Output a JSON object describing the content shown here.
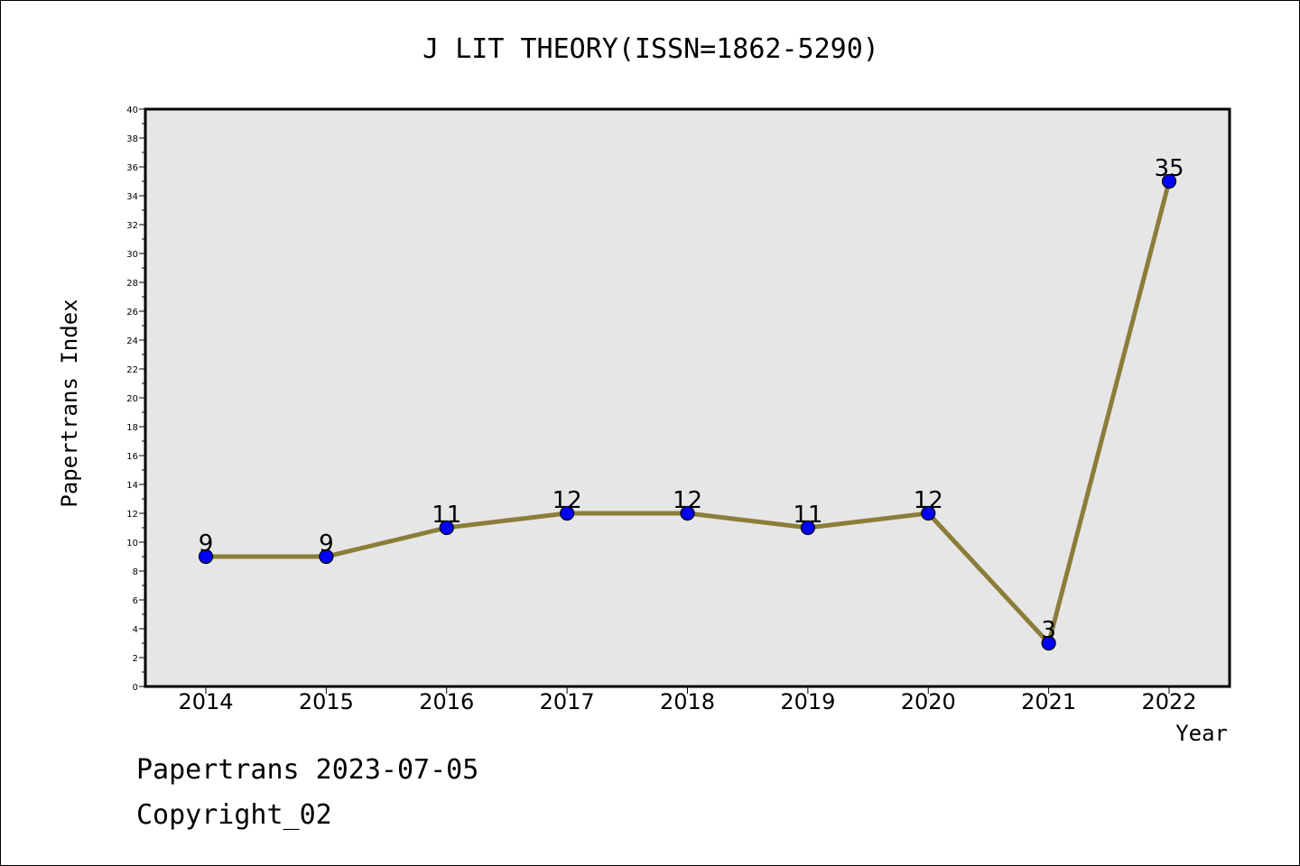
{
  "chart_data": {
    "type": "line",
    "title": "J LIT THEORY(ISSN=1862-5290)",
    "xlabel": "Year",
    "ylabel": "Papertrans Index",
    "categories": [
      "2014",
      "2015",
      "2016",
      "2017",
      "2018",
      "2019",
      "2020",
      "2021",
      "2022"
    ],
    "series": [
      {
        "values": [
          9,
          9,
          11,
          12,
          12,
          11,
          12,
          3,
          35
        ]
      }
    ],
    "ylim": [
      0,
      40
    ],
    "y_tick_step": 2,
    "grid": false,
    "line_color": "#8b7d3a",
    "marker_color": "#0000ff",
    "plot_background": "#e6e6e6"
  },
  "footer": {
    "line1": "Papertrans 2023-07-05",
    "line2": "Copyright_02"
  }
}
